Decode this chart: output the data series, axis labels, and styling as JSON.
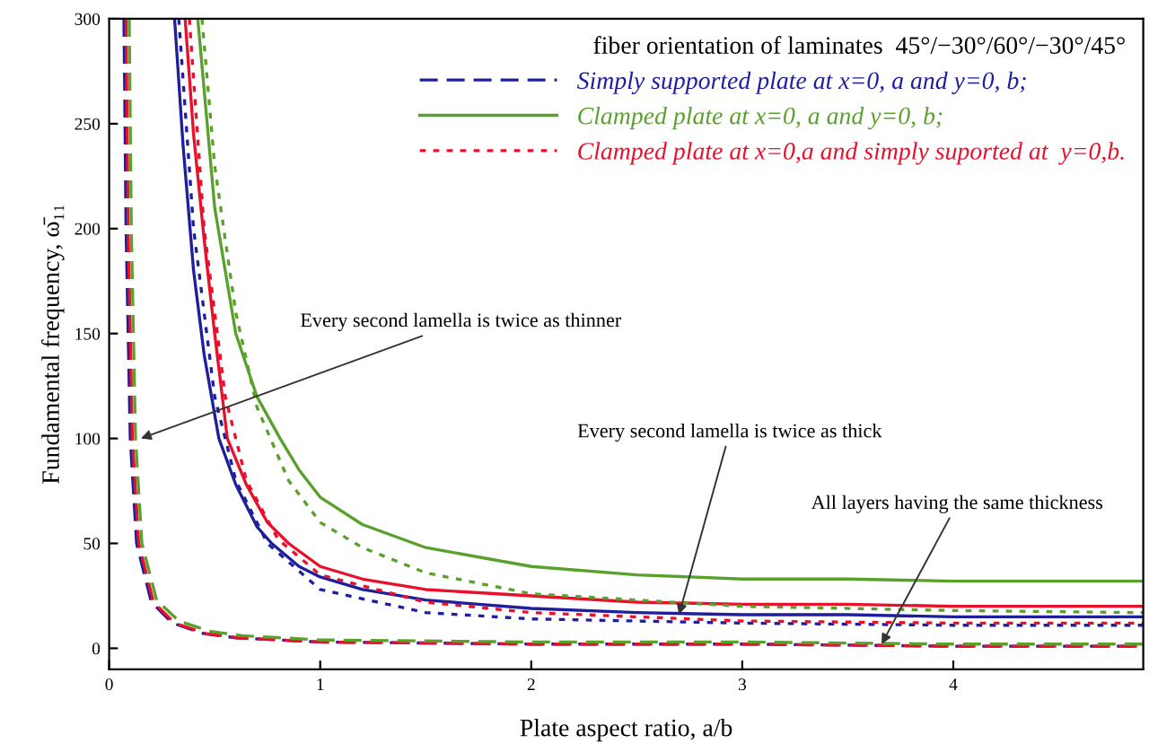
{
  "chart_data": {
    "type": "line",
    "xlabel": "Plate aspect ratio, a/b",
    "ylabel": "Fundamental frequency, ω̄₁₁",
    "legend_title": "fiber orientation of laminates  45°/−30°/60°/−30°/45°",
    "xlim": [
      0,
      4.9
    ],
    "ylim": [
      -10,
      300
    ],
    "xticks": [
      0,
      1,
      2,
      3,
      4
    ],
    "yticks": [
      0,
      50,
      100,
      150,
      200,
      250,
      300
    ],
    "grid": false,
    "legend": "top right",
    "marker": "none",
    "series": [
      {
        "name": "Simply supported plate at x=0, a and y=0, b;",
        "color": "#1f1f9e",
        "line_style": "dashed",
        "x": [
          0.07,
          0.08,
          0.1,
          0.13,
          0.2,
          0.3,
          0.45,
          0.6,
          1,
          2,
          3,
          4,
          4.9
        ],
        "values": [
          300,
          200,
          100,
          50,
          22,
          12,
          7,
          5,
          3,
          2,
          2,
          1,
          1
        ]
      },
      {
        "color": "#e8102a",
        "line_style": "dashed",
        "x": [
          0.08,
          0.09,
          0.11,
          0.14,
          0.21,
          0.31,
          0.46,
          0.61,
          1,
          2,
          3,
          4,
          4.9
        ],
        "values": [
          300,
          200,
          100,
          50,
          22,
          12,
          7,
          5,
          3,
          2,
          2,
          1,
          1
        ]
      },
      {
        "color": "#5aa02c",
        "line_style": "dashed",
        "x": [
          0.095,
          0.105,
          0.125,
          0.155,
          0.225,
          0.33,
          0.48,
          0.63,
          1,
          2,
          3,
          4,
          4.9
        ],
        "values": [
          300,
          200,
          100,
          50,
          23,
          13,
          8,
          6,
          4,
          3,
          3,
          2,
          2
        ]
      },
      {
        "color": "#1f1f9e",
        "line_style": "solid",
        "x": [
          0.31,
          0.35,
          0.4,
          0.45,
          0.52,
          0.6,
          0.7,
          0.77,
          0.9,
          1,
          1.2,
          1.5,
          2,
          2.5,
          3,
          3.5,
          4,
          4.5,
          4.9
        ],
        "values": [
          300,
          240,
          180,
          140,
          100,
          78,
          58,
          50,
          39,
          34,
          28,
          23,
          19,
          17,
          16,
          16,
          15,
          15,
          15
        ]
      },
      {
        "color": "#e8102a",
        "line_style": "solid",
        "x": [
          0.36,
          0.4,
          0.45,
          0.5,
          0.56,
          0.65,
          0.75,
          0.85,
          1,
          1.2,
          1.5,
          2,
          2.5,
          3,
          3.5,
          4,
          4.5,
          4.9
        ],
        "values": [
          300,
          245,
          195,
          150,
          100,
          78,
          60,
          50,
          39,
          33,
          28,
          25,
          22,
          21,
          21,
          20,
          20,
          20
        ]
      },
      {
        "name": "Clamped plate at x=0, a and y=0, b;",
        "color": "#5aa02c",
        "line_style": "solid",
        "x": [
          0.42,
          0.5,
          0.6,
          0.7,
          0.81,
          0.9,
          1,
          1.2,
          1.5,
          2,
          2.5,
          3,
          3.5,
          4,
          4.5,
          4.9
        ],
        "values": [
          300,
          210,
          150,
          120,
          100,
          85,
          72,
          59,
          48,
          39,
          35,
          33,
          33,
          32,
          32,
          32
        ]
      },
      {
        "color": "#1f1f9e",
        "line_style": "dotted",
        "x": [
          0.33,
          0.4,
          0.5,
          0.6,
          0.75,
          1,
          1.5,
          2,
          3,
          4,
          4.9
        ],
        "values": [
          300,
          200,
          120,
          80,
          50,
          28,
          17,
          14,
          12,
          11,
          11
        ]
      },
      {
        "name": "Clamped plate at x=0,a and simply suported at  y=0,b.",
        "color": "#e8102a",
        "line_style": "dotted",
        "x": [
          0.38,
          0.45,
          0.55,
          0.65,
          0.8,
          1,
          1.5,
          2,
          3,
          4,
          4.9
        ],
        "values": [
          300,
          200,
          120,
          80,
          52,
          35,
          22,
          17,
          13,
          12,
          12
        ]
      },
      {
        "color": "#5aa02c",
        "line_style": "dotted",
        "x": [
          0.44,
          0.5,
          0.6,
          0.7,
          0.85,
          1,
          1.2,
          1.5,
          2,
          3,
          4,
          4.9
        ],
        "values": [
          300,
          230,
          160,
          115,
          80,
          60,
          48,
          36,
          26,
          20,
          18,
          17
        ]
      }
    ],
    "annotations": [
      {
        "text": "Every second lamella is twice as thinner",
        "x": 0.15,
        "y": 100
      },
      {
        "text": "Every second lamella is twice as thick",
        "x": 2.7,
        "y": 16
      },
      {
        "text": "All layers having the same thickness",
        "x": 3.66,
        "y": 2
      }
    ]
  }
}
